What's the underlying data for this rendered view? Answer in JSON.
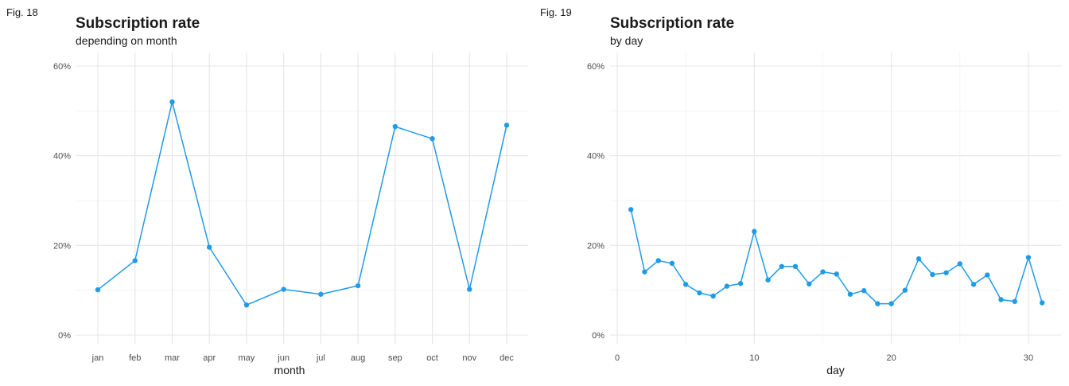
{
  "accent_color": "#1f9be8",
  "chart_data": [
    {
      "type": "line",
      "fig_label": "Fig. 18",
      "title": "Subscription rate",
      "subtitle": "depending on month",
      "xlabel": "month",
      "ylabel": "",
      "x_scale": "categorical",
      "categories": [
        "jan",
        "feb",
        "mar",
        "apr",
        "may",
        "jun",
        "jul",
        "aug",
        "sep",
        "oct",
        "nov",
        "dec"
      ],
      "values": [
        10.1,
        16.6,
        52.0,
        19.6,
        6.7,
        10.2,
        9.1,
        11.0,
        46.5,
        43.8,
        10.2,
        46.8
      ],
      "ylim": [
        0,
        60
      ],
      "y_ticks": [
        0,
        20,
        40,
        60
      ],
      "y_tick_labels": [
        "0%",
        "20%",
        "40%",
        "60%"
      ],
      "grid": true,
      "legend": "none"
    },
    {
      "type": "line",
      "fig_label": "Fig. 19",
      "title": "Subscription rate",
      "subtitle": "by day",
      "xlabel": "day",
      "ylabel": "",
      "x_scale": "numeric",
      "x": [
        1,
        2,
        3,
        4,
        5,
        6,
        7,
        8,
        9,
        10,
        11,
        12,
        13,
        14,
        15,
        16,
        17,
        18,
        19,
        20,
        21,
        22,
        23,
        24,
        25,
        26,
        27,
        28,
        29,
        30,
        31
      ],
      "values": [
        28.0,
        14.1,
        16.6,
        16.0,
        11.3,
        9.4,
        8.7,
        10.9,
        11.5,
        23.1,
        12.3,
        15.3,
        15.3,
        11.4,
        14.1,
        13.6,
        9.1,
        9.9,
        7.0,
        7.0,
        10.0,
        17.0,
        13.5,
        13.9,
        15.9,
        11.3,
        13.4,
        7.9,
        7.5,
        17.3,
        7.2
      ],
      "xlim": [
        0,
        31
      ],
      "x_ticks": [
        0,
        10,
        20,
        30
      ],
      "x_tick_labels": [
        "0",
        "10",
        "20",
        "30"
      ],
      "ylim": [
        0,
        60
      ],
      "y_ticks": [
        0,
        20,
        40,
        60
      ],
      "y_tick_labels": [
        "0%",
        "20%",
        "40%",
        "60%"
      ],
      "grid": true,
      "legend": "none"
    }
  ]
}
